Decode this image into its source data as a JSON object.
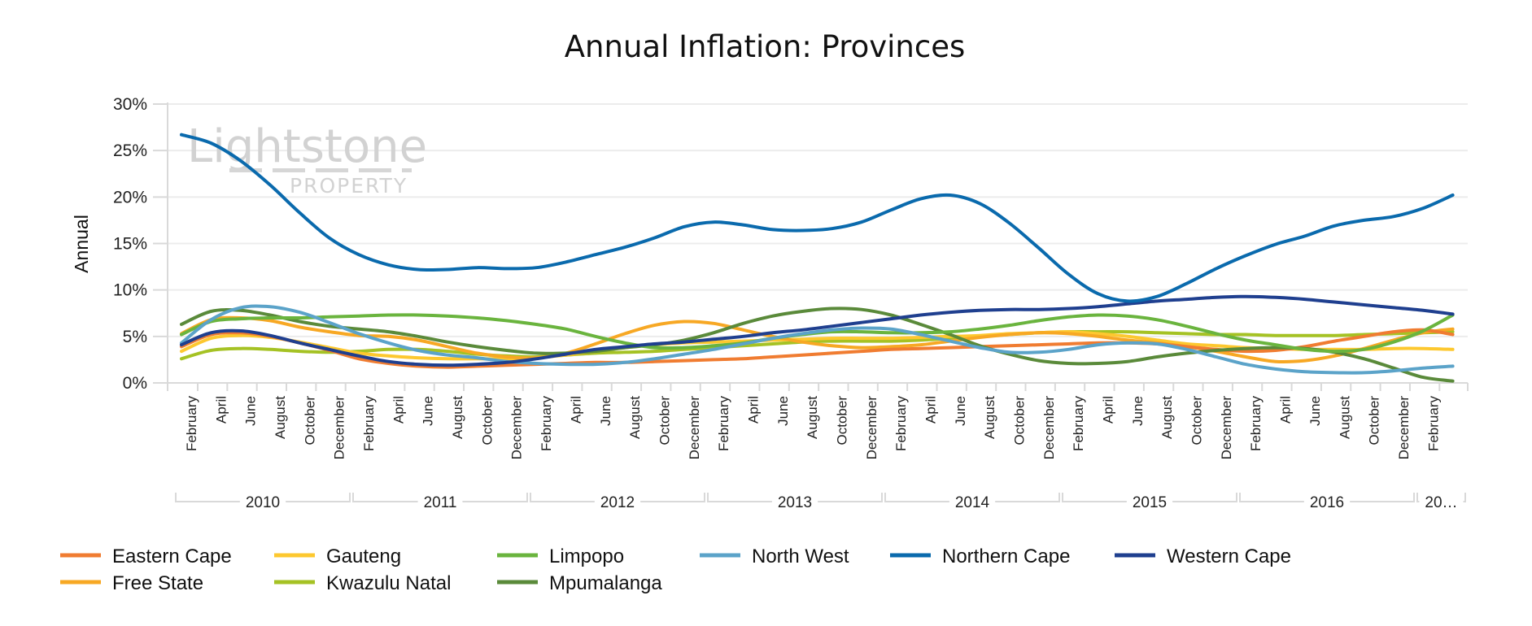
{
  "chart_data": {
    "type": "line",
    "title": "Annual Inflation: Provinces",
    "xlabel": "",
    "ylabel": "Annual",
    "ylim": [
      0,
      30
    ],
    "y_ticks": [
      "0%",
      "5%",
      "10%",
      "15%",
      "20%",
      "25%",
      "30%"
    ],
    "y_tick_values": [
      0,
      5,
      10,
      15,
      20,
      25,
      30
    ],
    "grid": true,
    "legend_position": "bottom-left",
    "watermark": {
      "main": "Lightstone",
      "sub": "PROPERTY"
    },
    "x_month_labels": [
      "February",
      "April",
      "June",
      "August",
      "October",
      "December",
      "February",
      "April",
      "June",
      "August",
      "October",
      "December",
      "February",
      "April",
      "June",
      "August",
      "October",
      "December",
      "February",
      "April",
      "June",
      "August",
      "October",
      "December",
      "February",
      "April",
      "June",
      "August",
      "October",
      "December",
      "February",
      "April",
      "June",
      "August",
      "October",
      "December",
      "February",
      "April",
      "June",
      "August",
      "October",
      "December",
      "February"
    ],
    "x_year_labels": [
      "2010",
      "2011",
      "2012",
      "2013",
      "2014",
      "2015",
      "2016",
      "20…"
    ],
    "x": [
      "Jan 2010",
      "Mar 2010",
      "May 2010",
      "Jul 2010",
      "Sep 2010",
      "Nov 2010",
      "Jan 2011",
      "Mar 2011",
      "May 2011",
      "Jul 2011",
      "Sep 2011",
      "Nov 2011",
      "Jan 2012",
      "Mar 2012",
      "May 2012",
      "Jul 2012",
      "Sep 2012",
      "Nov 2012",
      "Jan 2013",
      "Mar 2013",
      "May 2013",
      "Jul 2013",
      "Sep 2013",
      "Nov 2013",
      "Jan 2014",
      "Mar 2014",
      "May 2014",
      "Jul 2014",
      "Sep 2014",
      "Nov 2014",
      "Jan 2015",
      "Mar 2015",
      "May 2015",
      "Jul 2015",
      "Sep 2015",
      "Nov 2015",
      "Jan 2016",
      "Mar 2016",
      "May 2016",
      "Jul 2016",
      "Sep 2016",
      "Nov 2016",
      "Jan 2017",
      "Mar 2017"
    ],
    "series": [
      {
        "name": "Eastern Cape",
        "color": "#f07c31",
        "values": [
          3.9,
          5.2,
          5.4,
          5.0,
          4.3,
          3.5,
          2.6,
          2.1,
          1.8,
          1.7,
          1.8,
          1.9,
          2.0,
          2.1,
          2.2,
          2.2,
          2.3,
          2.4,
          2.5,
          2.6,
          2.8,
          3.0,
          3.2,
          3.4,
          3.6,
          3.7,
          3.8,
          3.9,
          4.0,
          4.1,
          4.2,
          4.3,
          4.3,
          4.2,
          3.9,
          3.6,
          3.4,
          3.5,
          3.9,
          4.5,
          5.0,
          5.5,
          5.7,
          5.2
        ]
      },
      {
        "name": "Gauteng",
        "color": "#fdc82f",
        "values": [
          3.4,
          4.8,
          5.1,
          4.9,
          4.4,
          3.8,
          3.2,
          2.9,
          2.7,
          2.6,
          2.6,
          2.6,
          2.7,
          3.0,
          3.4,
          3.8,
          4.1,
          4.3,
          4.4,
          4.5,
          4.6,
          4.7,
          4.8,
          4.8,
          4.8,
          4.9,
          5.0,
          5.1,
          5.3,
          5.4,
          5.5,
          5.3,
          5.0,
          4.6,
          4.2,
          4.0,
          3.8,
          3.7,
          3.6,
          3.6,
          3.6,
          3.7,
          3.7,
          3.6
        ]
      },
      {
        "name": "Limpopo",
        "color": "#6ab43e",
        "values": [
          5.2,
          6.6,
          6.9,
          7.0,
          7.0,
          7.1,
          7.2,
          7.3,
          7.3,
          7.2,
          7.0,
          6.7,
          6.3,
          5.8,
          5.0,
          4.3,
          3.8,
          3.8,
          4.0,
          4.3,
          4.8,
          5.2,
          5.5,
          5.5,
          5.4,
          5.4,
          5.5,
          5.8,
          6.2,
          6.7,
          7.1,
          7.3,
          7.2,
          6.8,
          6.1,
          5.3,
          4.6,
          4.1,
          3.6,
          3.4,
          3.6,
          4.4,
          5.6,
          7.3
        ]
      },
      {
        "name": "North West",
        "color": "#5ba3c9",
        "values": [
          4.3,
          6.8,
          8.1,
          8.2,
          7.6,
          6.5,
          5.3,
          4.3,
          3.5,
          3.0,
          2.7,
          2.3,
          2.1,
          2.0,
          2.0,
          2.2,
          2.6,
          3.1,
          3.6,
          4.2,
          4.8,
          5.3,
          5.7,
          5.9,
          5.8,
          5.2,
          4.5,
          3.8,
          3.3,
          3.3,
          3.6,
          4.1,
          4.3,
          4.2,
          3.6,
          2.8,
          2.0,
          1.5,
          1.2,
          1.1,
          1.1,
          1.3,
          1.6,
          1.8
        ]
      },
      {
        "name": "Northern Cape",
        "color": "#0a6aad",
        "values": [
          26.7,
          25.8,
          23.9,
          21.3,
          18.3,
          15.6,
          13.8,
          12.7,
          12.2,
          12.2,
          12.4,
          12.3,
          12.4,
          13.0,
          13.8,
          14.6,
          15.6,
          16.8,
          17.3,
          17.0,
          16.5,
          16.4,
          16.6,
          17.3,
          18.6,
          19.8,
          20.2,
          19.3,
          17.2,
          14.5,
          11.7,
          9.6,
          8.8,
          9.3,
          10.7,
          12.3,
          13.7,
          14.9,
          15.8,
          16.9,
          17.5,
          17.9,
          18.8,
          20.2
        ]
      },
      {
        "name": "Western Cape",
        "color": "#1f3f8f",
        "values": [
          4.1,
          5.4,
          5.6,
          5.1,
          4.3,
          3.6,
          2.9,
          2.3,
          2.0,
          1.9,
          2.0,
          2.2,
          2.6,
          3.1,
          3.6,
          3.9,
          4.2,
          4.4,
          4.7,
          5.0,
          5.4,
          5.7,
          6.1,
          6.5,
          6.9,
          7.3,
          7.6,
          7.8,
          7.9,
          7.9,
          8.0,
          8.2,
          8.5,
          8.8,
          9.0,
          9.2,
          9.3,
          9.2,
          9.0,
          8.7,
          8.4,
          8.1,
          7.8,
          7.4
        ]
      },
      {
        "name": "Free State",
        "color": "#f7a824",
        "values": [
          5.3,
          6.8,
          7.0,
          6.7,
          6.0,
          5.5,
          5.1,
          5.0,
          4.6,
          3.9,
          3.2,
          2.8,
          2.7,
          3.2,
          4.2,
          5.3,
          6.2,
          6.6,
          6.4,
          5.7,
          5.0,
          4.4,
          4.0,
          3.8,
          3.9,
          4.1,
          4.5,
          4.9,
          5.2,
          5.4,
          5.3,
          5.0,
          4.6,
          4.3,
          3.9,
          3.4,
          2.8,
          2.3,
          2.4,
          2.9,
          3.7,
          4.6,
          5.4,
          5.8
        ]
      },
      {
        "name": "Kwazulu Natal",
        "color": "#a5c224",
        "values": [
          2.6,
          3.5,
          3.7,
          3.6,
          3.4,
          3.3,
          3.4,
          3.6,
          3.6,
          3.4,
          3.1,
          2.9,
          2.8,
          3.0,
          3.2,
          3.3,
          3.4,
          3.6,
          3.8,
          4.0,
          4.2,
          4.4,
          4.5,
          4.5,
          4.5,
          4.6,
          4.8,
          5.0,
          5.2,
          5.4,
          5.5,
          5.5,
          5.5,
          5.4,
          5.3,
          5.2,
          5.2,
          5.1,
          5.1,
          5.1,
          5.2,
          5.3,
          5.4,
          5.5
        ]
      },
      {
        "name": "Mpumalanga",
        "color": "#5a8a3a",
        "values": [
          6.3,
          7.7,
          7.8,
          7.3,
          6.6,
          6.1,
          5.8,
          5.5,
          5.0,
          4.4,
          3.9,
          3.5,
          3.2,
          3.2,
          3.4,
          3.8,
          4.1,
          4.6,
          5.4,
          6.4,
          7.2,
          7.7,
          8.0,
          7.9,
          7.3,
          6.3,
          5.2,
          4.0,
          3.1,
          2.4,
          2.1,
          2.1,
          2.3,
          2.8,
          3.2,
          3.5,
          3.7,
          3.8,
          3.7,
          3.3,
          2.6,
          1.6,
          0.6,
          0.2
        ]
      }
    ]
  }
}
